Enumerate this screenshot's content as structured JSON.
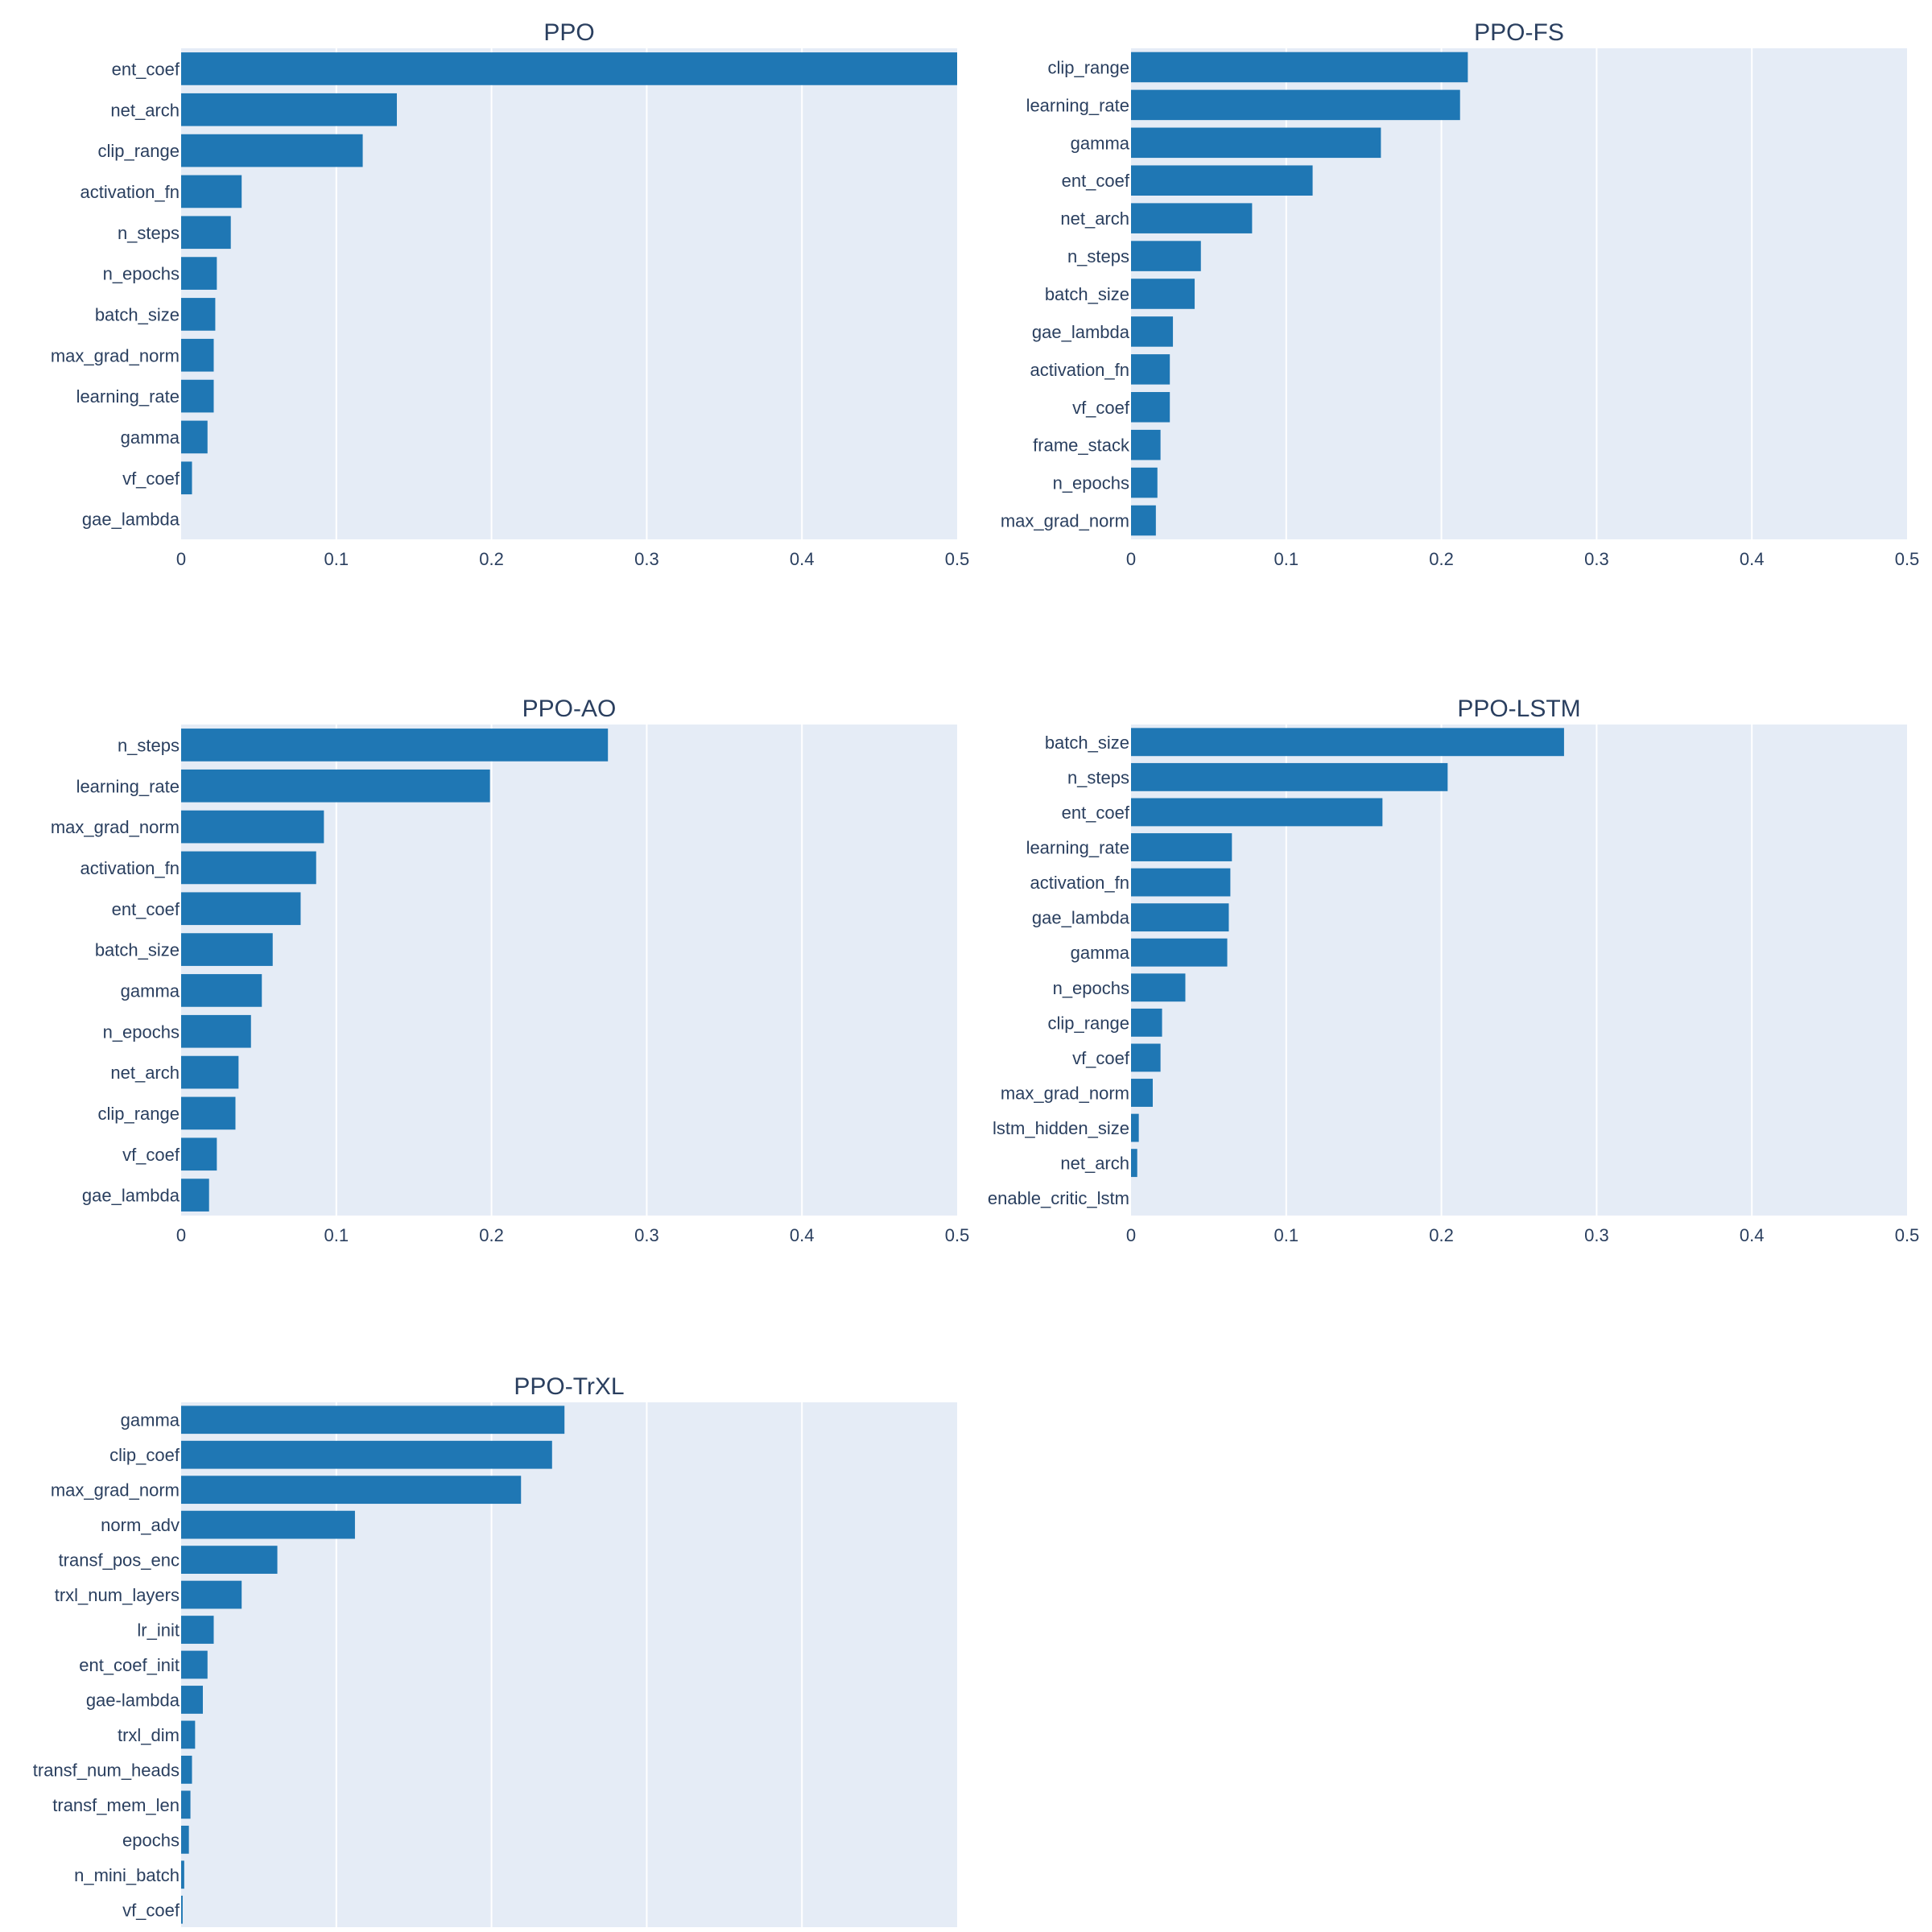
{
  "colors": {
    "bar": "#1f77b4",
    "plot_bg": "#e5ecf6",
    "grid": "#ffffff",
    "text": "#2a3f5f",
    "page_bg": "#ffffff"
  },
  "chart_data": [
    {
      "type": "bar",
      "orientation": "horizontal",
      "title": "PPO",
      "xlim": [
        0,
        0.5
      ],
      "xticks": [
        "0",
        "0.1",
        "0.2",
        "0.3",
        "0.4",
        "0.5"
      ],
      "grid": true,
      "categories": [
        "ent_coef",
        "net_arch",
        "clip_range",
        "activation_fn",
        "n_steps",
        "n_epochs",
        "batch_size",
        "max_grad_norm",
        "learning_rate",
        "gamma",
        "vf_coef",
        "gae_lambda"
      ],
      "values": [
        0.5,
        0.139,
        0.117,
        0.039,
        0.032,
        0.023,
        0.022,
        0.021,
        0.021,
        0.017,
        0.007,
        0.0
      ]
    },
    {
      "type": "bar",
      "orientation": "horizontal",
      "title": "PPO-FS",
      "xlim": [
        0,
        0.5
      ],
      "xticks": [
        "0",
        "0.1",
        "0.2",
        "0.3",
        "0.4",
        "0.5"
      ],
      "grid": true,
      "categories": [
        "clip_range",
        "learning_rate",
        "gamma",
        "ent_coef",
        "net_arch",
        "n_steps",
        "batch_size",
        "gae_lambda",
        "activation_fn",
        "vf_coef",
        "frame_stack",
        "n_epochs",
        "max_grad_norm"
      ],
      "values": [
        0.217,
        0.212,
        0.161,
        0.117,
        0.078,
        0.045,
        0.041,
        0.027,
        0.025,
        0.025,
        0.019,
        0.017,
        0.016
      ]
    },
    {
      "type": "bar",
      "orientation": "horizontal",
      "title": "PPO-AO",
      "xlim": [
        0,
        0.5
      ],
      "xticks": [
        "0",
        "0.1",
        "0.2",
        "0.3",
        "0.4",
        "0.5"
      ],
      "grid": true,
      "categories": [
        "n_steps",
        "learning_rate",
        "max_grad_norm",
        "activation_fn",
        "ent_coef",
        "batch_size",
        "gamma",
        "n_epochs",
        "net_arch",
        "clip_range",
        "vf_coef",
        "gae_lambda"
      ],
      "values": [
        0.275,
        0.199,
        0.092,
        0.087,
        0.077,
        0.059,
        0.052,
        0.045,
        0.037,
        0.035,
        0.023,
        0.018
      ]
    },
    {
      "type": "bar",
      "orientation": "horizontal",
      "title": "PPO-LSTM",
      "xlim": [
        0,
        0.5
      ],
      "xticks": [
        "0",
        "0.1",
        "0.2",
        "0.3",
        "0.4",
        "0.5"
      ],
      "grid": true,
      "categories": [
        "batch_size",
        "n_steps",
        "ent_coef",
        "learning_rate",
        "activation_fn",
        "gae_lambda",
        "gamma",
        "n_epochs",
        "clip_range",
        "vf_coef",
        "max_grad_norm",
        "lstm_hidden_size",
        "net_arch",
        "enable_critic_lstm"
      ],
      "values": [
        0.279,
        0.204,
        0.162,
        0.065,
        0.064,
        0.063,
        0.062,
        0.035,
        0.02,
        0.019,
        0.014,
        0.005,
        0.004,
        0.0
      ]
    },
    {
      "type": "bar",
      "orientation": "horizontal",
      "title": "PPO-TrXL",
      "xlim": [
        0,
        0.5
      ],
      "xticks": [
        "0",
        "0.1",
        "0.2",
        "0.3",
        "0.4",
        "0.5"
      ],
      "grid": true,
      "categories": [
        "gamma",
        "clip_coef",
        "max_grad_norm",
        "norm_adv",
        "transf_pos_enc",
        "trxl_num_layers",
        "lr_init",
        "ent_coef_init",
        "gae-lambda",
        "trxl_dim",
        "transf_num_heads",
        "transf_mem_len",
        "epochs",
        "n_mini_batch",
        "vf_coef"
      ],
      "values": [
        0.247,
        0.239,
        0.219,
        0.112,
        0.062,
        0.039,
        0.021,
        0.017,
        0.014,
        0.009,
        0.007,
        0.006,
        0.005,
        0.002,
        0.001
      ]
    }
  ]
}
